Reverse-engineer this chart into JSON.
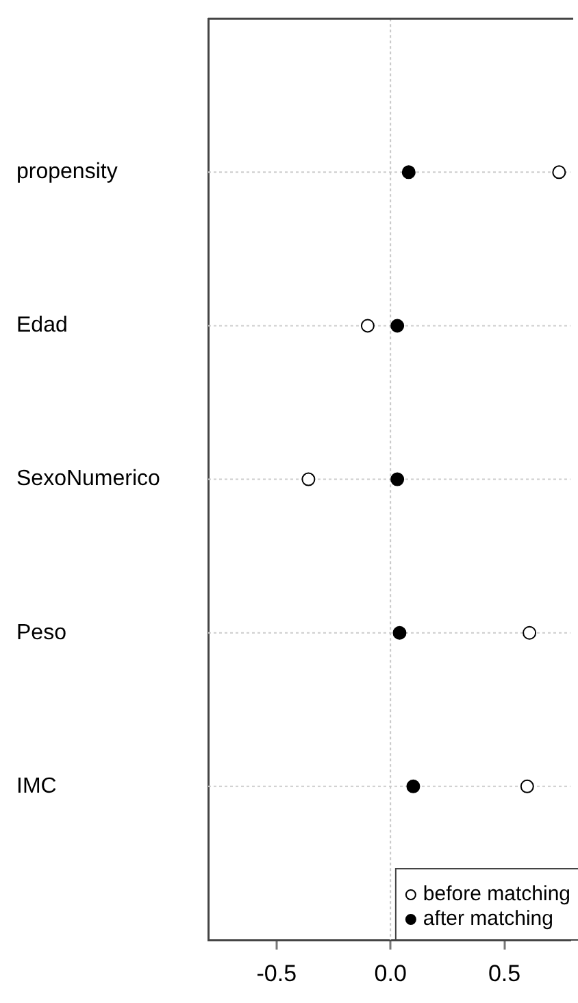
{
  "chart_data": {
    "type": "scatter",
    "categories": [
      "propensity",
      "Edad",
      "SexoNumerico",
      "Peso",
      "IMC"
    ],
    "series": [
      {
        "name": "before matching",
        "color": "#ffffff",
        "values": [
          0.74,
          -0.1,
          -0.36,
          0.61,
          0.6
        ]
      },
      {
        "name": "after matching",
        "color": "#000000",
        "values": [
          0.08,
          0.03,
          0.03,
          0.04,
          0.1
        ]
      }
    ],
    "orientation": "horizontal",
    "xlim": [
      -0.8,
      0.79
    ],
    "xticks": [
      {
        "value": -0.5,
        "label": "-0.5"
      },
      {
        "value": 0,
        "label": "0.0"
      },
      {
        "value": 0.5,
        "label": "0.5"
      }
    ],
    "grid": "y",
    "legend": "bottom right",
    "marker": "circle",
    "ref_lines": [
      {
        "axis": "x",
        "value": 0,
        "color": "#c8c8c8",
        "line_style": "dotted"
      }
    ]
  }
}
